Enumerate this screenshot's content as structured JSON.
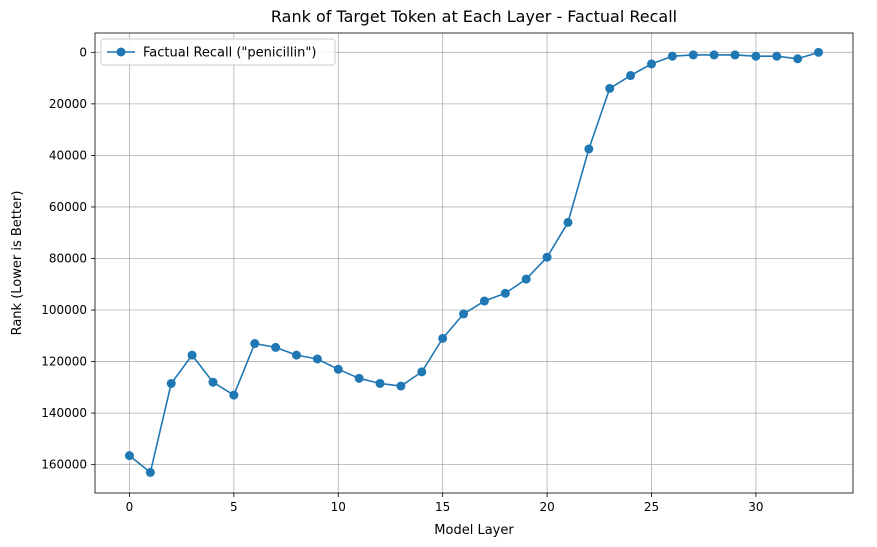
{
  "chart_data": {
    "type": "line",
    "title": "Rank of Target Token at Each Layer - Factual Recall",
    "xlabel": "Model Layer",
    "ylabel": "Rank (Lower is Better)",
    "xlim": [
      -1.65,
      34.65
    ],
    "ylim": [
      171000,
      -7500
    ],
    "y_inverted": true,
    "xticks": [
      0,
      5,
      10,
      15,
      20,
      25,
      30
    ],
    "yticks": [
      0,
      20000,
      40000,
      60000,
      80000,
      100000,
      120000,
      140000,
      160000
    ],
    "grid": true,
    "legend_position": "top-left",
    "marker": "circle",
    "color": "#1f77b4",
    "series": [
      {
        "name": "Factual Recall (\"penicillin\")",
        "x": [
          0,
          1,
          2,
          3,
          4,
          5,
          6,
          7,
          8,
          9,
          10,
          11,
          12,
          13,
          14,
          15,
          16,
          17,
          18,
          19,
          20,
          21,
          22,
          23,
          24,
          25,
          26,
          27,
          28,
          29,
          30,
          31,
          32,
          33
        ],
        "values": [
          156500,
          163000,
          128500,
          117500,
          128000,
          133000,
          113000,
          114500,
          117500,
          119000,
          123000,
          126500,
          128500,
          129500,
          124000,
          111000,
          101500,
          96500,
          93500,
          88000,
          79500,
          66000,
          37500,
          14000,
          9000,
          4500,
          1500,
          1000,
          1000,
          1000,
          1500,
          1500,
          2500,
          0
        ]
      }
    ]
  }
}
